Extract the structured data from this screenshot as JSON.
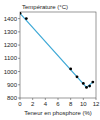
{
  "chart_data": {
    "type": "line",
    "y_label": "Température (°C)",
    "x_label": "Teneur en phosphore (%)",
    "xlim": [
      0,
      12
    ],
    "xticks": [
      0,
      2,
      4,
      6,
      8,
      10,
      12
    ],
    "ylim": [
      800,
      1450
    ],
    "yticks": [
      800,
      900,
      1000,
      1100,
      1200,
      1300,
      1400
    ],
    "grid": false,
    "series": [
      {
        "type": "scatter",
        "marker": "circle",
        "color": "#000000",
        "x": [
          0,
          1,
          8,
          9,
          10,
          10.5,
          11,
          11.5
        ],
        "values": [
          1440,
          1400,
          1020,
          960,
          910,
          880,
          890,
          920
        ]
      },
      {
        "type": "line",
        "line_style": "solid",
        "color": "#3fa9d6",
        "x": [
          0,
          10.5,
          11.5
        ],
        "values": [
          1440,
          880,
          920
        ]
      }
    ]
  }
}
